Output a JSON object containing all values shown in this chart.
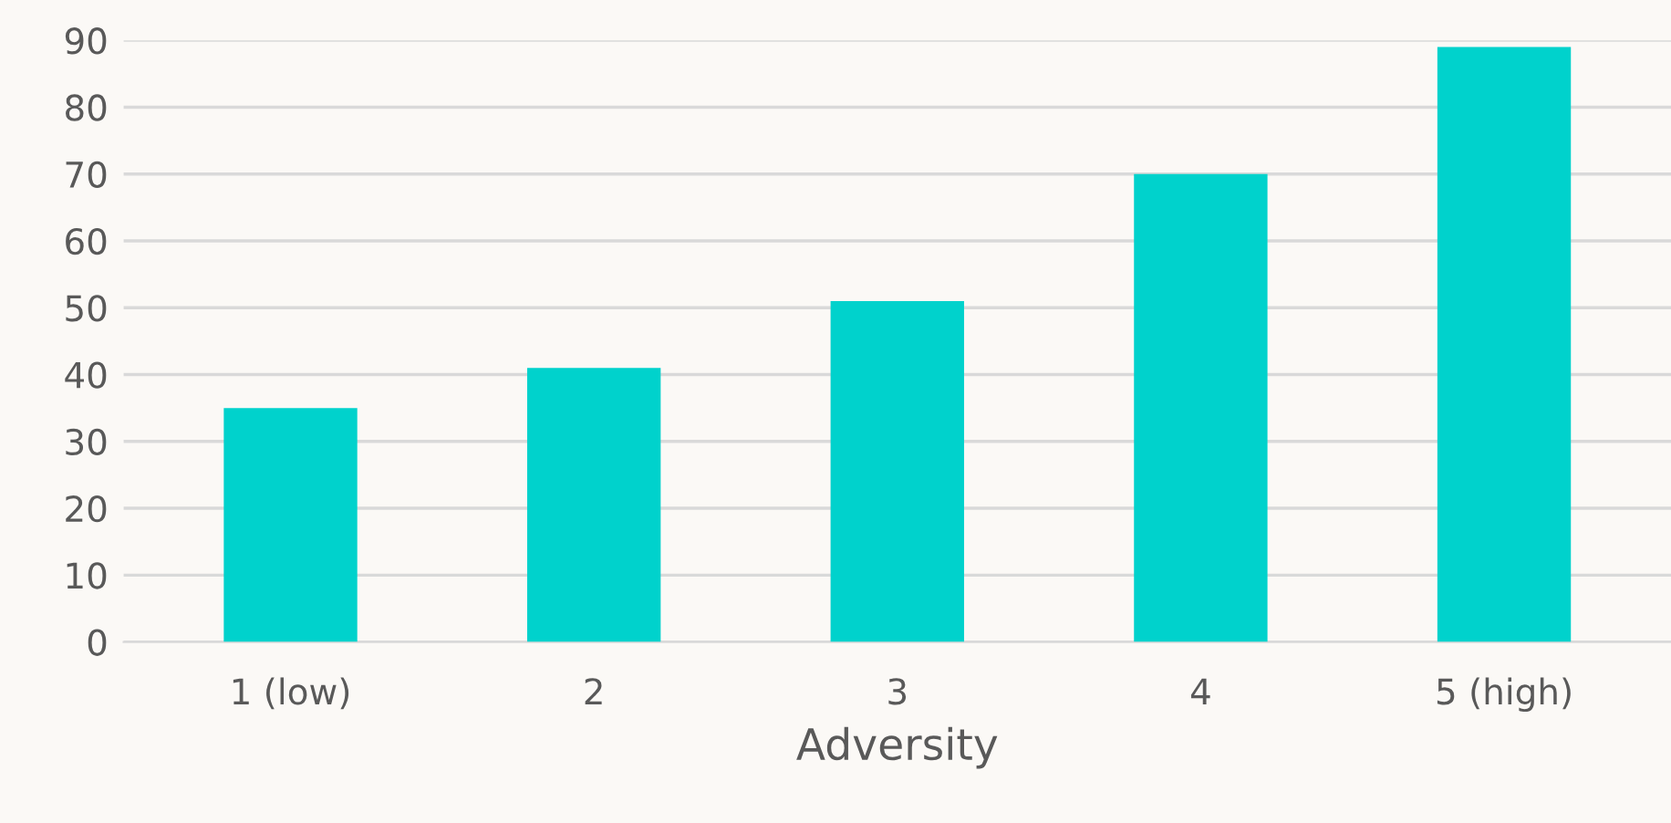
{
  "chart_data": {
    "type": "bar",
    "xlabel": "Adversity",
    "categories": [
      "1 (low)",
      "2",
      "3",
      "4",
      "5 (high)"
    ],
    "values": [
      35,
      41,
      51,
      70,
      89
    ],
    "color": "#00d2cc",
    "ylim": [
      0,
      90
    ],
    "yticks": [
      0,
      10,
      20,
      30,
      40,
      50,
      60,
      70,
      80,
      90
    ],
    "grid": "y",
    "legend": false
  }
}
